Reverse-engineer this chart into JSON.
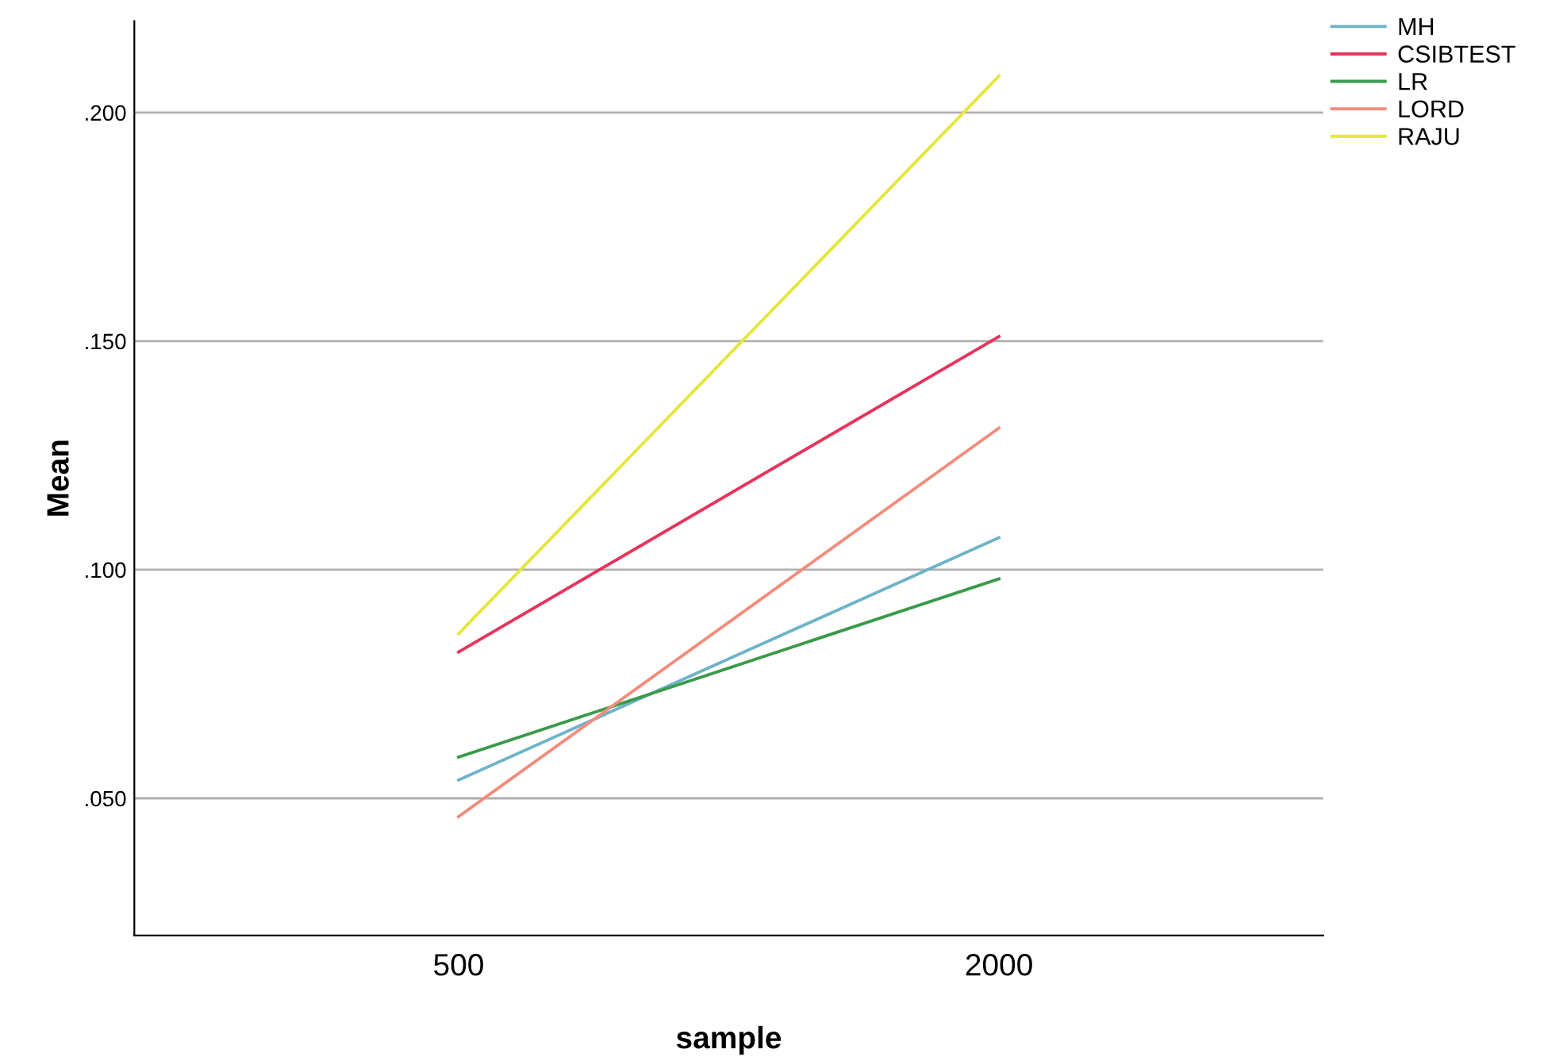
{
  "chart_data": {
    "type": "line",
    "xlabel": "sample",
    "ylabel": "Mean",
    "categories": [
      "500",
      "2000"
    ],
    "series": [
      {
        "name": "MH",
        "color": "#6fb3c8",
        "values": [
          0.054,
          0.107
        ]
      },
      {
        "name": "CSIBTEST",
        "color": "#e8335a",
        "values": [
          0.082,
          0.151
        ]
      },
      {
        "name": "LR",
        "color": "#3a9a4a",
        "values": [
          0.059,
          0.098
        ]
      },
      {
        "name": "LORD",
        "color": "#f48c7c",
        "values": [
          0.046,
          0.131
        ]
      },
      {
        "name": "RAJU",
        "color": "#e6e63c",
        "values": [
          0.086,
          0.208
        ]
      }
    ],
    "ylim": [
      0.02,
      0.22
    ],
    "yticks": [
      {
        "value": 0.05,
        "label": ".050"
      },
      {
        "value": 0.1,
        "label": ".100"
      },
      {
        "value": 0.15,
        "label": ".150"
      },
      {
        "value": 0.2,
        "label": ".200"
      }
    ],
    "grid": "y",
    "legend": "top right",
    "marker": "none",
    "line_style": "solid"
  }
}
